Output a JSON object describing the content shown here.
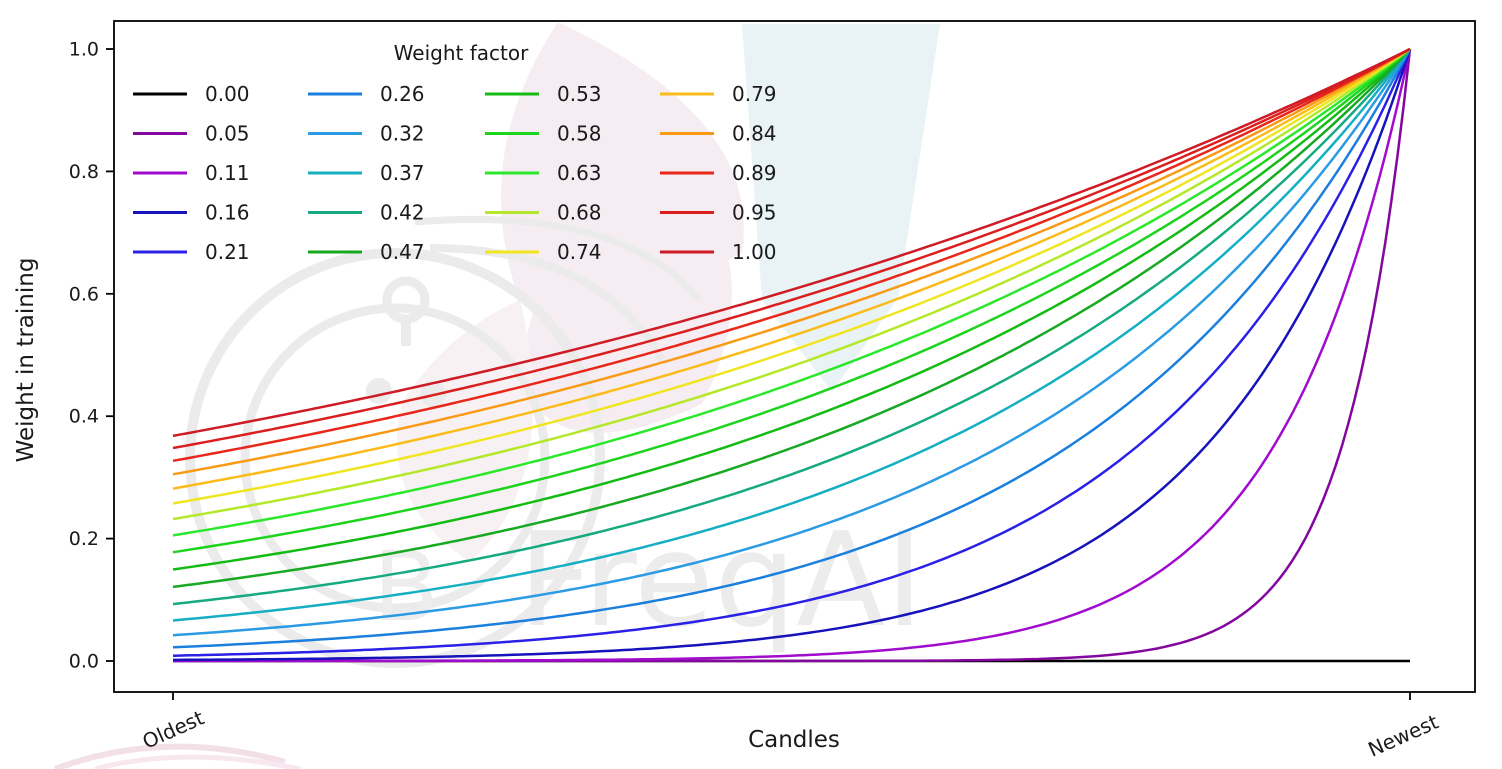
{
  "chart_data": {
    "type": "line",
    "title": "",
    "xlabel": "Candles",
    "ylabel": "Weight in training",
    "x_tick_labels": [
      "Oldest",
      "Newest"
    ],
    "y_ticks": [
      {
        "label": "0.0",
        "value": 0.0
      },
      {
        "label": "0.2",
        "value": 0.2
      },
      {
        "label": "0.4",
        "value": 0.4
      },
      {
        "label": "0.6",
        "value": 0.6
      },
      {
        "label": "0.8",
        "value": 0.8
      },
      {
        "label": "1.0",
        "value": 1.0
      }
    ],
    "ylim": [
      -0.047,
      1.047
    ],
    "x_range_description": "x axis spans training candles from Oldest (t=0) to Newest (t=1), no numeric ticks",
    "grid": false,
    "formula": "weight(t) = exp(-(1 - t) / weight_factor); weight_factor = 0 gives a flat line at 0",
    "legend": {
      "title": "Weight factor",
      "location": "upper left",
      "ncol": 4,
      "rows_per_column": 5,
      "frame": false
    },
    "series": [
      {
        "label": "0.00",
        "factor": 0.0,
        "color": "#000000"
      },
      {
        "label": "0.05",
        "factor": 0.05263,
        "color": "#83079E"
      },
      {
        "label": "0.11",
        "factor": 0.10526,
        "color": "#A00BCE"
      },
      {
        "label": "0.16",
        "factor": 0.15789,
        "color": "#1612BC"
      },
      {
        "label": "0.21",
        "factor": 0.21053,
        "color": "#2B20E6"
      },
      {
        "label": "0.26",
        "factor": 0.26316,
        "color": "#1B7FDE"
      },
      {
        "label": "0.32",
        "factor": 0.31579,
        "color": "#2B9BE4"
      },
      {
        "label": "0.37",
        "factor": 0.36842,
        "color": "#14AFC2"
      },
      {
        "label": "0.42",
        "factor": 0.42105,
        "color": "#15AA80"
      },
      {
        "label": "0.47",
        "factor": 0.47368,
        "color": "#16A921"
      },
      {
        "label": "0.53",
        "factor": 0.52632,
        "color": "#13BC13"
      },
      {
        "label": "0.58",
        "factor": 0.57895,
        "color": "#1DD41D"
      },
      {
        "label": "0.63",
        "factor": 0.63158,
        "color": "#2BE82B"
      },
      {
        "label": "0.68",
        "factor": 0.68421,
        "color": "#B5E82A"
      },
      {
        "label": "0.74",
        "factor": 0.73684,
        "color": "#F0E520"
      },
      {
        "label": "0.79",
        "factor": 0.78947,
        "color": "#FBBC19"
      },
      {
        "label": "0.84",
        "factor": 0.84211,
        "color": "#F99A16"
      },
      {
        "label": "0.89",
        "factor": 0.89474,
        "color": "#E9261A"
      },
      {
        "label": "0.95",
        "factor": 0.94737,
        "color": "#DB1E1E"
      },
      {
        "label": "1.00",
        "factor": 1.0,
        "color": "#CF1B26"
      }
    ],
    "watermark": {
      "text": "FreqAI",
      "text_color": "#ECECEC",
      "logo_color": "#EBEBEB",
      "pink_shape_color": "#F6EDF2",
      "blue_shape_color": "#E9F2F5"
    }
  }
}
